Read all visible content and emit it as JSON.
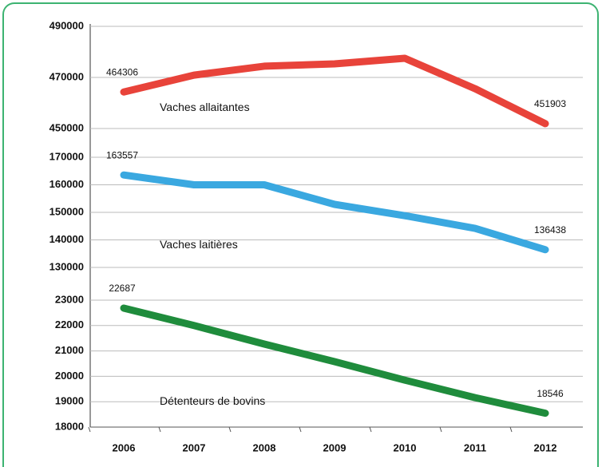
{
  "chart_data": {
    "type": "line",
    "categories": [
      "2006",
      "2007",
      "2008",
      "2009",
      "2010",
      "2011",
      "2012"
    ],
    "panels": [
      {
        "series": [
          {
            "name": "Vaches allaitantes",
            "color": "#e8433a",
            "values": [
              464306,
              470900,
              474400,
              475300,
              477500,
              465600,
              451903
            ]
          }
        ],
        "ylim": [
          450000,
          490000
        ],
        "yticks": [
          450000,
          470000,
          490000
        ]
      },
      {
        "series": [
          {
            "name": "Vaches laitières",
            "color": "#3aa8e0",
            "values": [
              163557,
              160000,
              160000,
              152900,
              148800,
              144200,
              136438
            ]
          }
        ],
        "ylim": [
          130000,
          170000
        ],
        "yticks": [
          130000,
          140000,
          150000,
          160000,
          170000
        ]
      },
      {
        "series": [
          {
            "name": "Détenteurs de bovins",
            "color": "#1f8c3c",
            "values": [
              22687,
              22000,
              21270,
              20580,
              19850,
              19160,
              18546
            ]
          }
        ],
        "ylim": [
          18000,
          23000
        ],
        "yticks": [
          18000,
          19000,
          20000,
          21000,
          22000,
          23000
        ]
      }
    ]
  }
}
